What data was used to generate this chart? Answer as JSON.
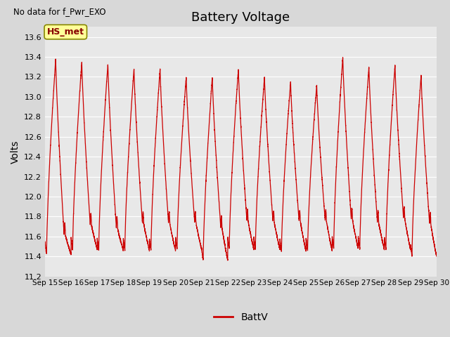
{
  "title": "Battery Voltage",
  "ylabel": "Volts",
  "top_left_text": "No data for f_Pwr_EXO",
  "legend_label": "BattV",
  "line_color": "#cc0000",
  "ylim": [
    11.2,
    13.7
  ],
  "yticks": [
    11.2,
    11.4,
    11.6,
    11.8,
    12.0,
    12.2,
    12.4,
    12.6,
    12.8,
    13.0,
    13.2,
    13.4,
    13.6
  ],
  "xtick_labels": [
    "Sep 15",
    "Sep 16",
    "Sep 17",
    "Sep 18",
    "Sep 19",
    "Sep 20",
    "Sep 21",
    "Sep 22",
    "Sep 23",
    "Sep 24",
    "Sep 25",
    "Sep 26",
    "Sep 27",
    "Sep 28",
    "Sep 29",
    "Sep 30"
  ],
  "background_color": "#d8d8d8",
  "axes_bg_color": "#e8e8e8",
  "grid_color": "#ffffff",
  "annotation_box_color": "#ffff99",
  "annotation_box_edge": "#888800",
  "annotation_text": "HS_met",
  "annotation_text_color": "#880000",
  "peak_voltages": [
    13.38,
    13.35,
    13.33,
    13.28,
    13.28,
    13.2,
    13.2,
    13.28,
    13.2,
    13.15,
    13.12,
    13.4,
    13.3,
    13.32,
    13.22
  ],
  "min_voltages": [
    11.42,
    11.47,
    11.46,
    11.46,
    11.46,
    11.47,
    11.36,
    11.47,
    11.47,
    11.45,
    11.46,
    11.48,
    11.47,
    11.47,
    11.4
  ],
  "notch_fracs": [
    0.55,
    0.55,
    0.55,
    0.55,
    0.55,
    0.55,
    0.55,
    0.55,
    0.55,
    0.55,
    0.55,
    0.55,
    0.55,
    0.55,
    0.55
  ],
  "notch_depths": [
    0.9,
    0.87,
    0.88,
    0.85,
    0.85,
    0.84,
    0.82,
    0.84,
    0.84,
    0.82,
    0.82,
    0.85,
    0.85,
    0.83,
    0.82
  ],
  "rise_fracs": [
    0.35,
    0.35,
    0.35,
    0.35,
    0.35,
    0.35,
    0.35,
    0.35,
    0.35,
    0.35,
    0.35,
    0.35,
    0.35,
    0.35,
    0.35
  ]
}
